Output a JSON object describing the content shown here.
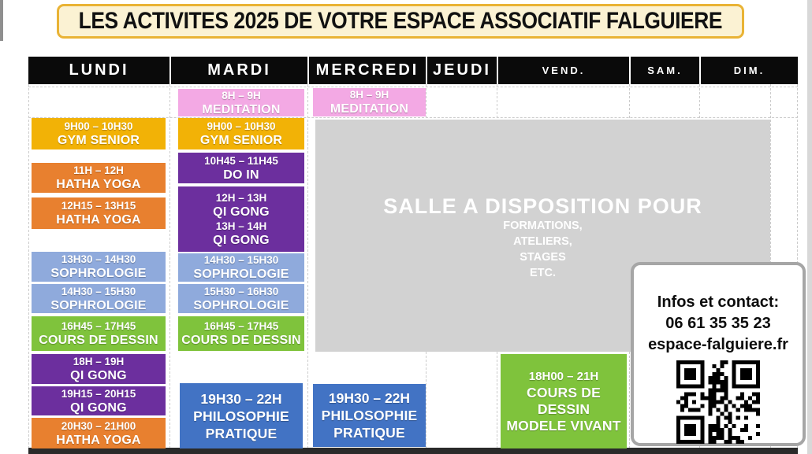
{
  "title": "LES ACTIVITES 2025 DE VOTRE ESPACE ASSOCIATIF FALGUIERE",
  "header": {
    "days": [
      "LUNDI",
      "MARDI",
      "MERCREDI",
      "JEUDI",
      "VEND.",
      "SAM.",
      "DIM."
    ]
  },
  "colors": {
    "gold": "#f2b206",
    "orange": "#e8802f",
    "ltblue": "#8faadc",
    "purple": "#6c2f9e",
    "green": "#7fc33c",
    "pink": "#f3a9e4",
    "blue": "#4273c4",
    "gray": "#d2d2d2"
  },
  "schedule": {
    "lundi": [
      {
        "time": "9H00 – 10H30",
        "label": "GYM SENIOR"
      },
      {
        "time": "11H – 12H",
        "label": "HATHA YOGA"
      },
      {
        "time": "12H15 – 13H15",
        "label": "HATHA YOGA"
      },
      {
        "time": "13H30 – 14H30",
        "label": "SOPHROLOGIE"
      },
      {
        "time": "14H30 – 15H30",
        "label": "SOPHROLOGIE"
      },
      {
        "time": "16H45 – 17H45",
        "label": "COURS DE DESSIN"
      },
      {
        "time": "18H – 19H",
        "label": "QI GONG"
      },
      {
        "time": "19H15 – 20H15",
        "label": "QI GONG"
      },
      {
        "time": "20H30 – 21H00",
        "label": "HATHA YOGA"
      }
    ],
    "mardi": [
      {
        "time": "8H – 9H",
        "label": "MEDITATION"
      },
      {
        "time": "9H00 – 10H30",
        "label": "GYM SENIOR"
      },
      {
        "time": "10H45 – 11H45",
        "label": "DO IN"
      },
      {
        "time": "12H – 13H",
        "label": "QI GONG"
      },
      {
        "time": "13H – 14H",
        "label": "QI GONG"
      },
      {
        "time": "14H30 – 15H30",
        "label": "SOPHROLOGIE"
      },
      {
        "time": "15H30 – 16H30",
        "label": "SOPHROLOGIE"
      },
      {
        "time": "16H45 – 17H45",
        "label": "COURS DE DESSIN"
      },
      {
        "time": "19H30 – 22H",
        "label": "PHILOSOPHIE",
        "label2": "PRATIQUE"
      }
    ],
    "mercredi": [
      {
        "time": "8H – 9H",
        "label": "MEDITATION"
      },
      {
        "time": "19H30 – 22H",
        "label": "PHILOSOPHIE",
        "label2": "PRATIQUE"
      }
    ],
    "vendredi": [
      {
        "time": "18H00 – 21H",
        "label": "COURS DE DESSIN",
        "label2": "MODELE VIVANT"
      }
    ]
  },
  "salle_notice": {
    "title": "SALLE A DISPOSITION POUR",
    "lines": [
      "FORMATIONS,",
      "ATELIERS,",
      "STAGES",
      "ETC."
    ]
  },
  "contact": {
    "heading": "Infos et contact:",
    "phone": "06 61 35 35 23",
    "website": "espace-falguiere.fr"
  }
}
